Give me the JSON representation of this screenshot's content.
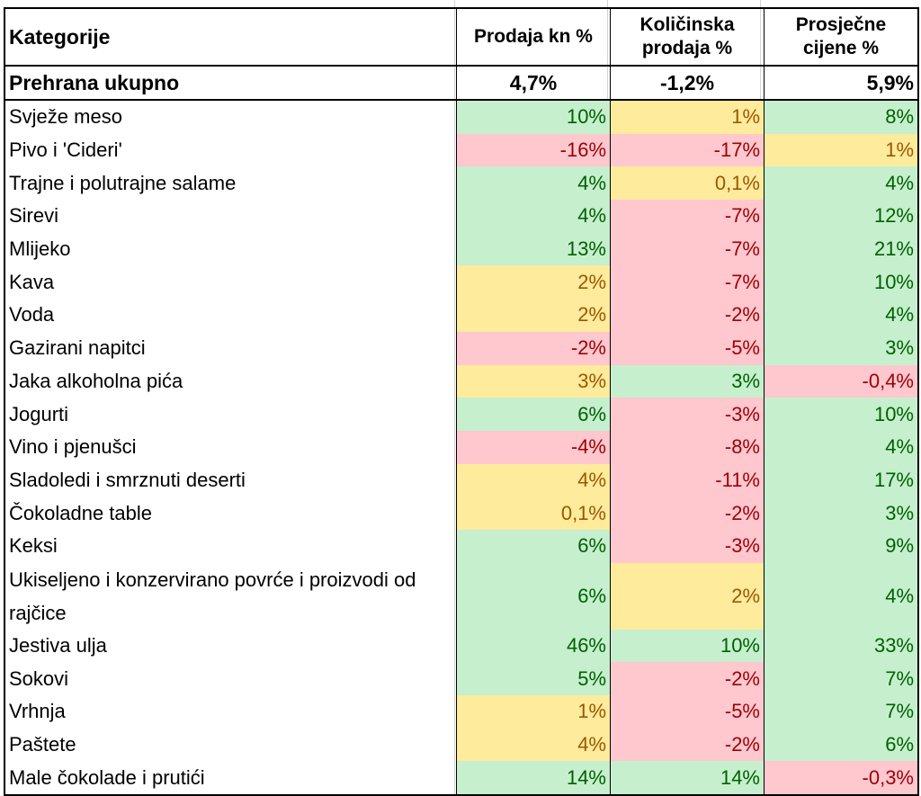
{
  "colors": {
    "green_fill": "#c6efce",
    "green_text": "#006100",
    "yellow_fill": "#ffeb9c",
    "yellow_text": "#9c5700",
    "red_fill": "#ffc7ce",
    "red_text": "#9c0006"
  },
  "headers": {
    "category": "Kategorije",
    "sales": "Prodaja kn %",
    "volume": "Količinska prodaja %",
    "price": "Prosječne cijene %"
  },
  "total": {
    "category": "Prehrana ukupno",
    "sales": "4,7%",
    "volume": "-1,2%",
    "price": "5,9%"
  },
  "rows": [
    {
      "category": "Svježe meso",
      "sales": "10%",
      "sales_c": "g",
      "volume": "1%",
      "volume_c": "y",
      "price": "8%",
      "price_c": "g"
    },
    {
      "category": "Pivo i 'Cideri'",
      "sales": "-16%",
      "sales_c": "r",
      "volume": "-17%",
      "volume_c": "r",
      "price": "1%",
      "price_c": "y"
    },
    {
      "category": "Trajne i polutrajne salame",
      "sales": "4%",
      "sales_c": "g",
      "volume": "0,1%",
      "volume_c": "y",
      "price": "4%",
      "price_c": "g"
    },
    {
      "category": "Sirevi",
      "sales": "4%",
      "sales_c": "g",
      "volume": "-7%",
      "volume_c": "r",
      "price": "12%",
      "price_c": "g"
    },
    {
      "category": "Mlijeko",
      "sales": "13%",
      "sales_c": "g",
      "volume": "-7%",
      "volume_c": "r",
      "price": "21%",
      "price_c": "g"
    },
    {
      "category": "Kava",
      "sales": "2%",
      "sales_c": "y",
      "volume": "-7%",
      "volume_c": "r",
      "price": "10%",
      "price_c": "g"
    },
    {
      "category": "Voda",
      "sales": "2%",
      "sales_c": "y",
      "volume": "-2%",
      "volume_c": "r",
      "price": "4%",
      "price_c": "g"
    },
    {
      "category": "Gazirani napitci",
      "sales": "-2%",
      "sales_c": "r",
      "volume": "-5%",
      "volume_c": "r",
      "price": "3%",
      "price_c": "g"
    },
    {
      "category": "Jaka alkoholna pića",
      "sales": "3%",
      "sales_c": "y",
      "volume": "3%",
      "volume_c": "g",
      "price": "-0,4%",
      "price_c": "r"
    },
    {
      "category": "Jogurti",
      "sales": "6%",
      "sales_c": "g",
      "volume": "-3%",
      "volume_c": "r",
      "price": "10%",
      "price_c": "g"
    },
    {
      "category": "Vino i pjenušci",
      "sales": "-4%",
      "sales_c": "r",
      "volume": "-8%",
      "volume_c": "r",
      "price": "4%",
      "price_c": "g"
    },
    {
      "category": "Sladoledi i smrznuti deserti",
      "sales": "4%",
      "sales_c": "y",
      "volume": "-11%",
      "volume_c": "r",
      "price": "17%",
      "price_c": "g"
    },
    {
      "category": "Čokoladne table",
      "sales": "0,1%",
      "sales_c": "y",
      "volume": "-2%",
      "volume_c": "r",
      "price": "3%",
      "price_c": "g"
    },
    {
      "category": "Keksi",
      "sales": "6%",
      "sales_c": "g",
      "volume": "-3%",
      "volume_c": "r",
      "price": "9%",
      "price_c": "g"
    },
    {
      "category": "Ukiseljeno i konzervirano povrće i proizvodi od rajčice",
      "sales": "6%",
      "sales_c": "g",
      "volume": "2%",
      "volume_c": "y",
      "price": "4%",
      "price_c": "g"
    },
    {
      "category": "Jestiva ulja",
      "sales": "46%",
      "sales_c": "g",
      "volume": "10%",
      "volume_c": "g",
      "price": "33%",
      "price_c": "g"
    },
    {
      "category": "Sokovi",
      "sales": "5%",
      "sales_c": "g",
      "volume": "-2%",
      "volume_c": "r",
      "price": "7%",
      "price_c": "g"
    },
    {
      "category": "Vrhnja",
      "sales": "1%",
      "sales_c": "y",
      "volume": "-5%",
      "volume_c": "r",
      "price": "7%",
      "price_c": "g"
    },
    {
      "category": "Paštete",
      "sales": "4%",
      "sales_c": "y",
      "volume": "-2%",
      "volume_c": "r",
      "price": "6%",
      "price_c": "g"
    },
    {
      "category": "Male čokolade i prutići",
      "sales": "14%",
      "sales_c": "g",
      "volume": "14%",
      "volume_c": "g",
      "price": "-0,3%",
      "price_c": "r"
    }
  ]
}
